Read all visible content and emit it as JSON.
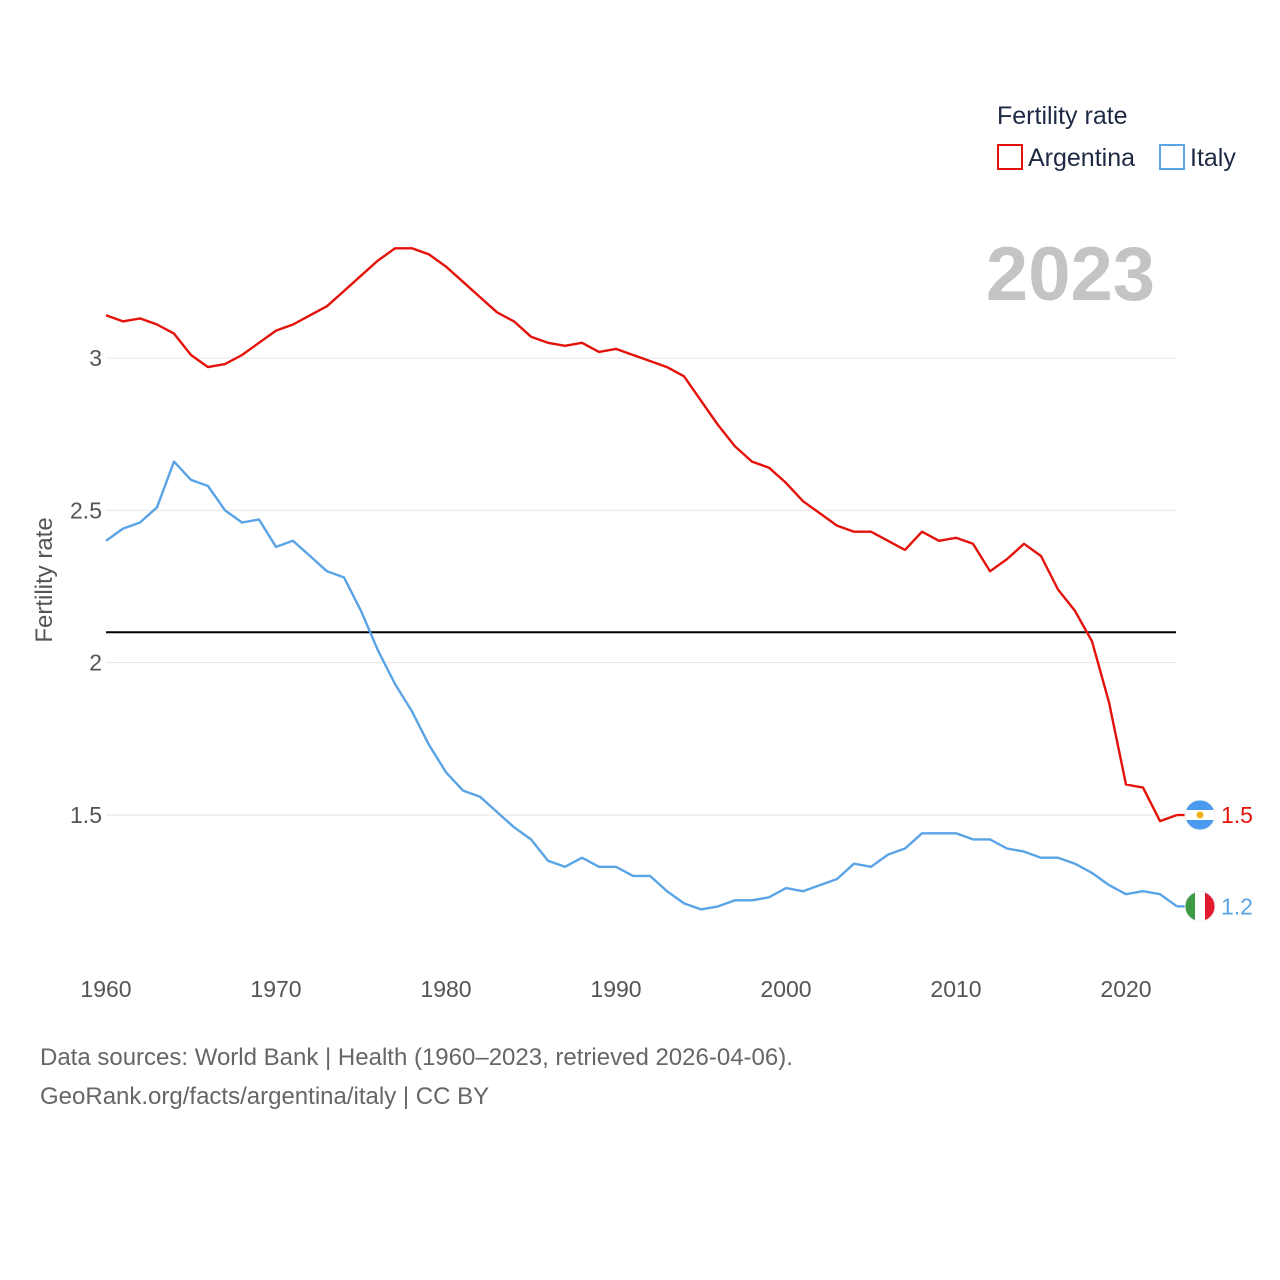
{
  "chart_data": {
    "type": "line",
    "title": "",
    "ylabel": "Fertility rate",
    "xlabel": "",
    "xlim": [
      1960,
      2023
    ],
    "ylim": [
      1.0,
      3.5
    ],
    "x_ticks": [
      1960,
      1970,
      1980,
      1990,
      2000,
      2010,
      2020
    ],
    "y_ticks": [
      1.5,
      2,
      2.5,
      3
    ],
    "y_tick_labels": [
      "1.5",
      "2",
      "2.5",
      "3"
    ],
    "replacement_level": 2.1,
    "legend": {
      "title": "Fertility rate",
      "position": "top-right"
    },
    "current_year": "2023",
    "x": [
      1960,
      1961,
      1962,
      1963,
      1964,
      1965,
      1966,
      1967,
      1968,
      1969,
      1970,
      1971,
      1972,
      1973,
      1974,
      1975,
      1976,
      1977,
      1978,
      1979,
      1980,
      1981,
      1982,
      1983,
      1984,
      1985,
      1986,
      1987,
      1988,
      1989,
      1990,
      1991,
      1992,
      1993,
      1994,
      1995,
      1996,
      1997,
      1998,
      1999,
      2000,
      2001,
      2002,
      2003,
      2004,
      2005,
      2006,
      2007,
      2008,
      2009,
      2010,
      2011,
      2012,
      2013,
      2014,
      2015,
      2016,
      2017,
      2018,
      2019,
      2020,
      2021,
      2022,
      2023
    ],
    "series": [
      {
        "name": "Argentina",
        "color": "#e3120b",
        "end_label": "1.5",
        "flag": "argentina-flag",
        "values": [
          3.14,
          3.12,
          3.13,
          3.11,
          3.08,
          3.01,
          2.97,
          2.98,
          3.01,
          3.05,
          3.09,
          3.11,
          3.14,
          3.17,
          3.22,
          3.27,
          3.32,
          3.36,
          3.36,
          3.34,
          3.3,
          3.25,
          3.2,
          3.15,
          3.12,
          3.07,
          3.05,
          3.04,
          3.05,
          3.02,
          3.03,
          3.01,
          2.99,
          2.97,
          2.94,
          2.86,
          2.78,
          2.71,
          2.66,
          2.64,
          2.59,
          2.53,
          2.49,
          2.45,
          2.43,
          2.43,
          2.4,
          2.37,
          2.43,
          2.4,
          2.41,
          2.39,
          2.3,
          2.34,
          2.39,
          2.35,
          2.24,
          2.17,
          2.07,
          1.87,
          1.6,
          1.59,
          1.48,
          1.5
        ]
      },
      {
        "name": "Italy",
        "color": "#5aa4e6",
        "end_label": "1.2",
        "flag": "italy-flag",
        "values": [
          2.4,
          2.44,
          2.46,
          2.51,
          2.66,
          2.6,
          2.58,
          2.5,
          2.46,
          2.47,
          2.38,
          2.4,
          2.35,
          2.3,
          2.28,
          2.17,
          2.04,
          1.93,
          1.84,
          1.73,
          1.64,
          1.58,
          1.56,
          1.51,
          1.46,
          1.42,
          1.35,
          1.33,
          1.36,
          1.33,
          1.33,
          1.3,
          1.3,
          1.25,
          1.21,
          1.19,
          1.2,
          1.22,
          1.22,
          1.23,
          1.26,
          1.25,
          1.27,
          1.29,
          1.34,
          1.33,
          1.37,
          1.39,
          1.44,
          1.44,
          1.44,
          1.42,
          1.42,
          1.39,
          1.38,
          1.36,
          1.36,
          1.34,
          1.31,
          1.27,
          1.24,
          1.25,
          1.24,
          1.2
        ]
      }
    ]
  },
  "footer": {
    "line1": "Data sources: World Bank | Health (1960–2023, retrieved 2026-04-06).",
    "line2": "GeoRank.org/facts/argentina/italy | CC BY"
  }
}
